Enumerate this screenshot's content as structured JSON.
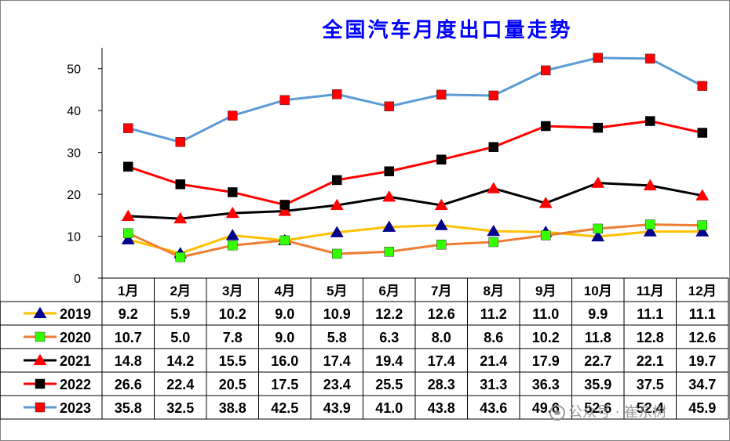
{
  "chart_data": {
    "type": "line",
    "title": "全国汽车月度出口量走势",
    "categories": [
      "1月",
      "2月",
      "3月",
      "4月",
      "5月",
      "6月",
      "7月",
      "8月",
      "9月",
      "10月",
      "11月",
      "12月"
    ],
    "ylim": [
      0,
      55
    ],
    "yticks": [
      "0",
      "10",
      "20",
      "30",
      "40",
      "50"
    ],
    "grid": false,
    "legend": "table-left",
    "series": [
      {
        "name": "2019",
        "color": "#ffc000",
        "marker": "triangle",
        "marker_color": "#00008b",
        "values": [
          9.2,
          5.9,
          10.2,
          9.0,
          10.9,
          12.2,
          12.6,
          11.2,
          11.0,
          9.9,
          11.1,
          11.1
        ],
        "labels": [
          "9.2",
          "5.9",
          "10.2",
          "9.0",
          "10.9",
          "12.2",
          "12.6",
          "11.2",
          "11.0",
          "9.9",
          "11.1",
          "11.1"
        ]
      },
      {
        "name": "2020",
        "color": "#ed7d31",
        "marker": "square",
        "marker_color": "#33ff00",
        "values": [
          10.7,
          5.0,
          7.8,
          9.0,
          5.8,
          6.3,
          8.0,
          8.6,
          10.2,
          11.8,
          12.8,
          12.6
        ],
        "labels": [
          "10.7",
          "5.0",
          "7.8",
          "9.0",
          "5.8",
          "6.3",
          "8.0",
          "8.6",
          "10.2",
          "11.8",
          "12.8",
          "12.6"
        ]
      },
      {
        "name": "2021",
        "color": "#000000",
        "marker": "triangle",
        "marker_color": "#ff0000",
        "values": [
          14.8,
          14.2,
          15.5,
          16.0,
          17.4,
          19.4,
          17.4,
          21.4,
          17.9,
          22.7,
          22.1,
          19.7
        ],
        "labels": [
          "14.8",
          "14.2",
          "15.5",
          "16.0",
          "17.4",
          "19.4",
          "17.4",
          "21.4",
          "17.9",
          "22.7",
          "22.1",
          "19.7"
        ]
      },
      {
        "name": "2022",
        "color": "#ff0000",
        "marker": "square",
        "marker_color": "#000000",
        "values": [
          26.6,
          22.4,
          20.5,
          17.5,
          23.4,
          25.5,
          28.3,
          31.3,
          36.3,
          35.9,
          37.5,
          34.7
        ],
        "labels": [
          "26.6",
          "22.4",
          "20.5",
          "17.5",
          "23.4",
          "25.5",
          "28.3",
          "31.3",
          "36.3",
          "35.9",
          "37.5",
          "34.7"
        ]
      },
      {
        "name": "2023",
        "color": "#5b9bd5",
        "marker": "square",
        "marker_color": "#ff0000",
        "values": [
          35.8,
          32.5,
          38.8,
          42.5,
          43.9,
          41.0,
          43.8,
          43.6,
          49.6,
          52.6,
          52.4,
          45.9
        ],
        "labels": [
          "35.8",
          "32.5",
          "38.8",
          "42.5",
          "43.9",
          "41.0",
          "43.8",
          "43.6",
          "49.6",
          "52.6",
          "52.4",
          "45.9"
        ]
      }
    ]
  },
  "watermark": {
    "text": "公众号 · 崔东树",
    "icon": "wechat-icon"
  }
}
